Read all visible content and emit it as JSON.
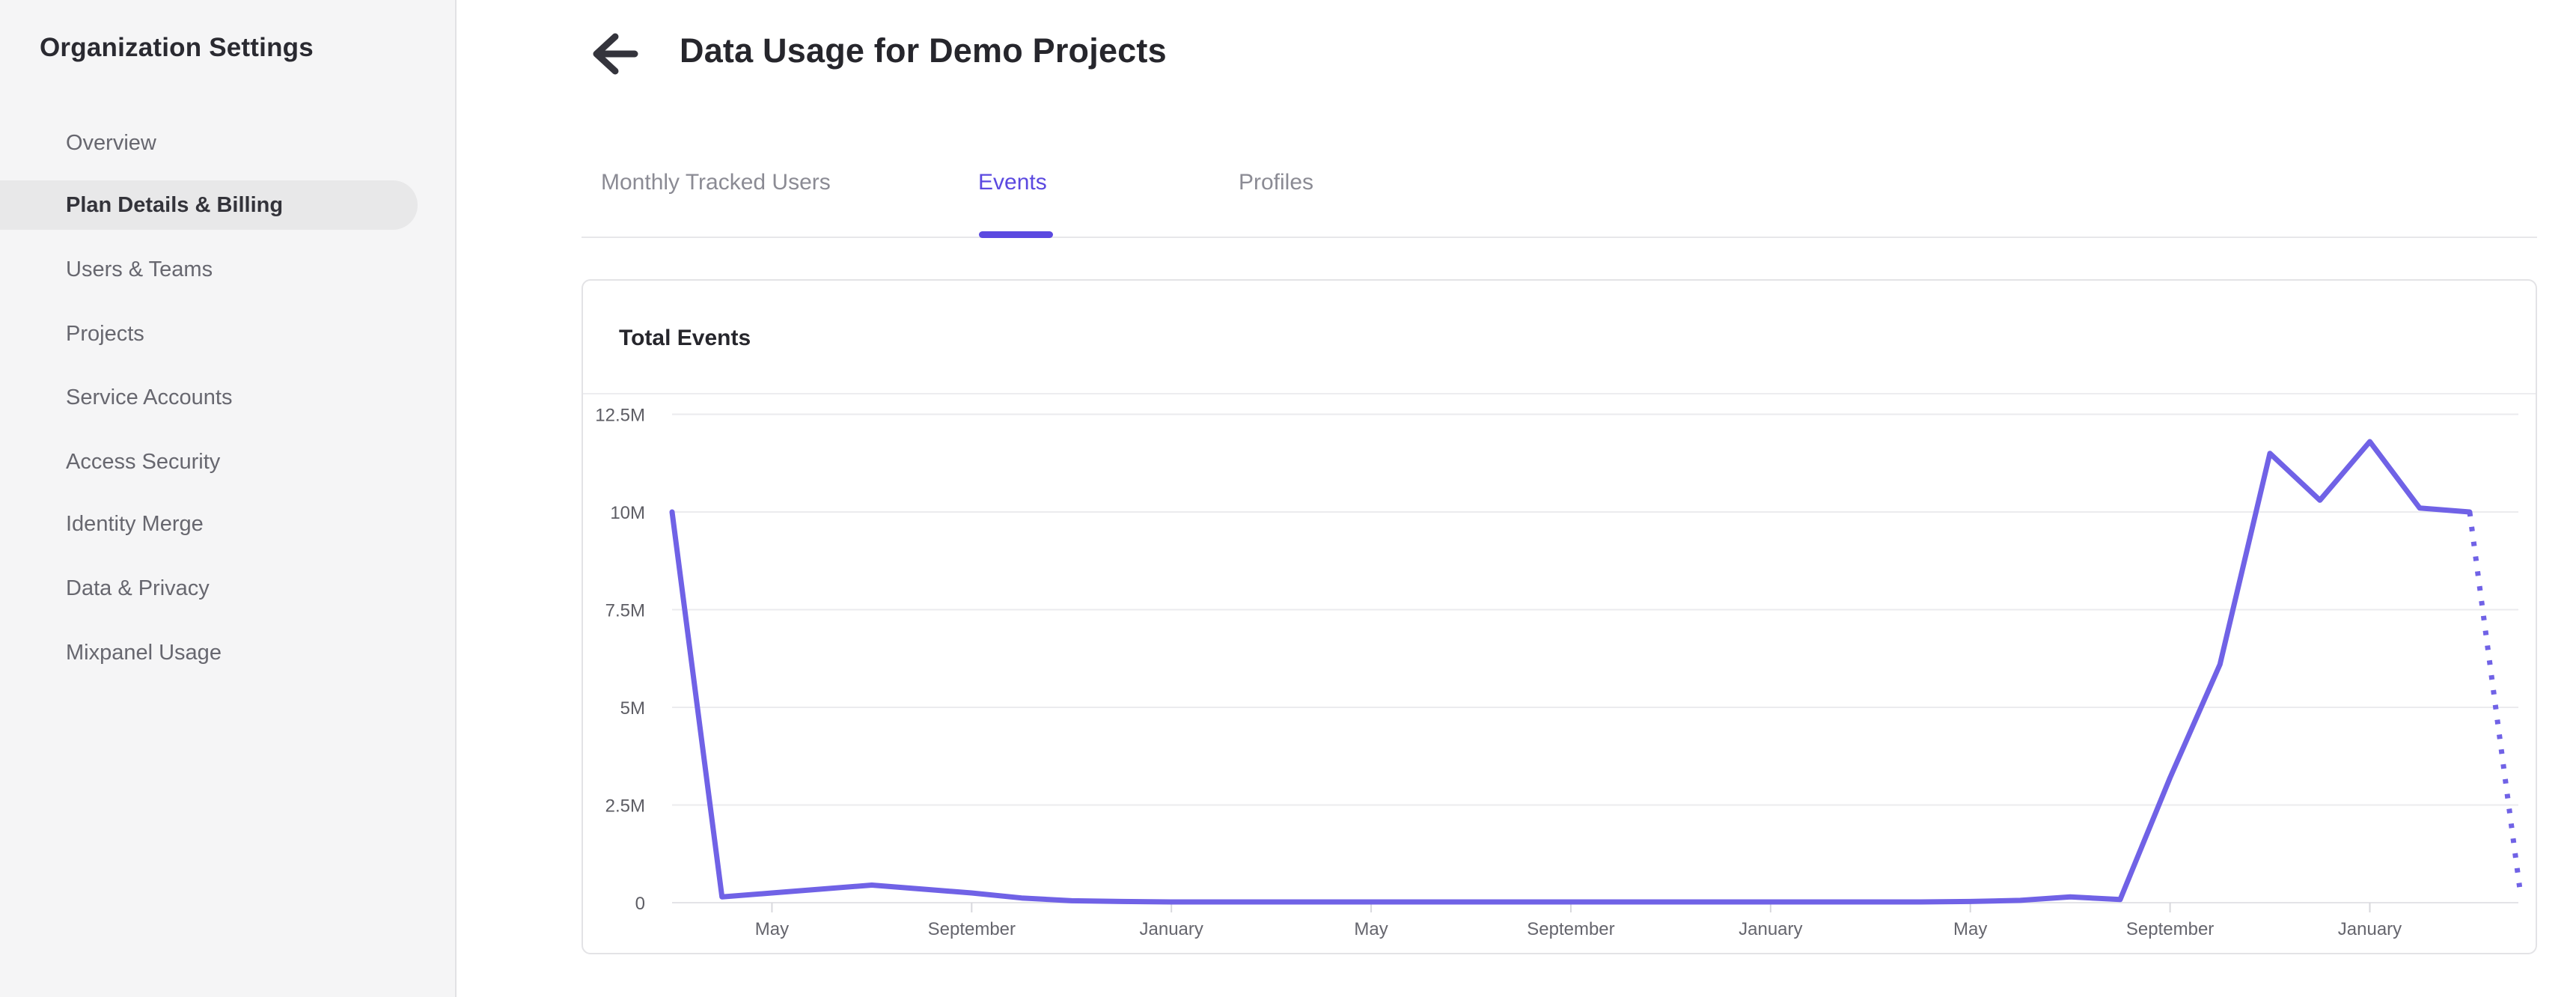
{
  "sidebar": {
    "title": "Organization Settings",
    "items": [
      {
        "label": "Overview",
        "active": false
      },
      {
        "label": "Plan Details & Billing",
        "active": true
      },
      {
        "label": "Users & Teams",
        "active": false
      },
      {
        "label": "Projects",
        "active": false
      },
      {
        "label": "Service Accounts",
        "active": false
      },
      {
        "label": "Access Security",
        "active": false
      },
      {
        "label": "Identity Merge",
        "active": false
      },
      {
        "label": "Data & Privacy",
        "active": false
      },
      {
        "label": "Mixpanel Usage",
        "active": false
      }
    ]
  },
  "header": {
    "title": "Data Usage for Demo Projects",
    "back_icon": "arrow-left-icon"
  },
  "tabs": [
    {
      "label": "Monthly Tracked Users",
      "active": false
    },
    {
      "label": "Events",
      "active": true
    },
    {
      "label": "Profiles",
      "active": false
    }
  ],
  "card": {
    "title": "Total Events"
  },
  "colors": {
    "accent": "#5b49e0",
    "line": "#7062e6",
    "sidebar_bg": "#f5f5f6",
    "selected_pill": "#e8e8e9",
    "gridline": "#ebebee",
    "dark_text": "#26262c"
  },
  "chart_data": {
    "type": "line",
    "title": "Total Events",
    "series_name": "Total Events",
    "unit": "events per month (millions)",
    "y_ticks": [
      "12.5M",
      "10M",
      "7.5M",
      "5M",
      "2.5M",
      "0"
    ],
    "y_tick_values": [
      12.5,
      10,
      7.5,
      5,
      2.5,
      0
    ],
    "ylim": [
      0,
      12.5
    ],
    "grid": "horizontal",
    "x_tick_labels": [
      "May",
      "September",
      "January",
      "May",
      "September",
      "January",
      "May",
      "September",
      "January"
    ],
    "x_tick_month_indices": [
      2,
      6,
      10,
      14,
      18,
      22,
      26,
      30,
      34
    ],
    "x_note": "monthly points; first point is 2 months before the first May tick; final point is a partial month drawn dotted",
    "values_millions": [
      10,
      0.15,
      0.25,
      0.35,
      0.45,
      0.35,
      0.25,
      0.12,
      0.05,
      0.03,
      0.02,
      0.02,
      0.02,
      0.02,
      0.02,
      0.02,
      0.02,
      0.02,
      0.02,
      0.02,
      0.02,
      0.02,
      0.02,
      0.02,
      0.02,
      0.02,
      0.03,
      0.06,
      0.15,
      0.08,
      3.2,
      6.1,
      11.5,
      10.3,
      11.8,
      10.1,
      10,
      0.4
    ],
    "last_point_style": "dotted",
    "line_color": "#7062e6",
    "legend": "none"
  }
}
